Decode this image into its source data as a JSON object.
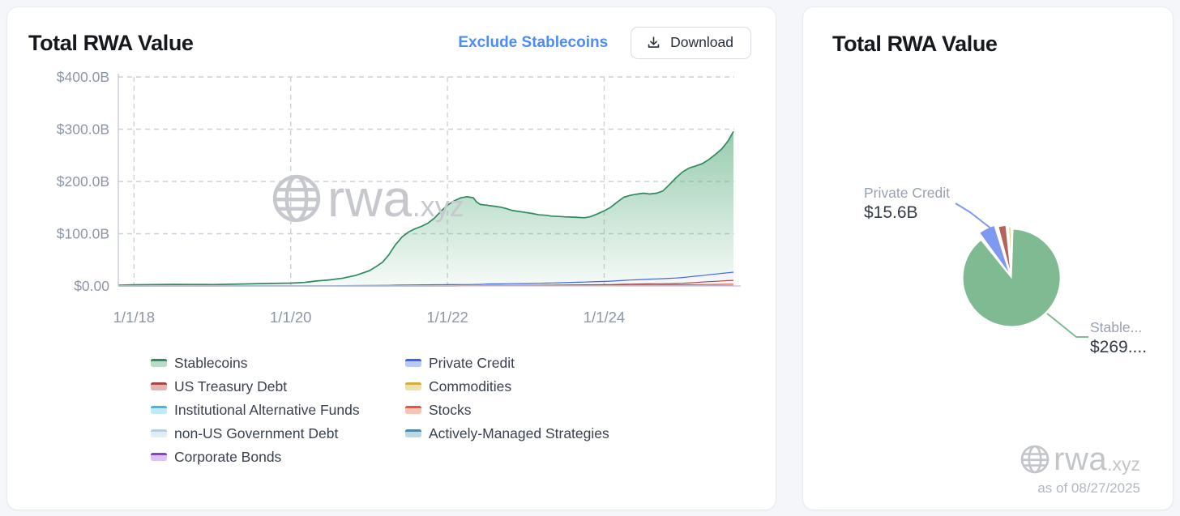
{
  "watermark": {
    "brand": "rwa",
    "tld": ".xyz"
  },
  "left_card": {
    "title": "Total RWA Value",
    "exclude_link": "Exclude Stablecoins",
    "download_label": "Download"
  },
  "right_card": {
    "title": "Total RWA Value",
    "as_of": "as of 08/27/2025",
    "callouts": {
      "private_credit": {
        "name": "Private Credit",
        "value": "$15.6B"
      },
      "stablecoins": {
        "name": "Stable...",
        "value": "$269...."
      }
    }
  },
  "legend": {
    "columns": [
      [
        {
          "label": "Stablecoins",
          "line": "#2f8a5d",
          "fill": "#b9dcc8"
        },
        {
          "label": "US Treasury Debt",
          "line": "#ab4742",
          "fill": "#e3b6b3"
        },
        {
          "label": "Institutional Alternative Funds",
          "line": "#3fbcdc",
          "fill": "#bfeaf6"
        },
        {
          "label": "non-US Government Debt",
          "line": "#b9cde0",
          "fill": "#e2ecf5"
        },
        {
          "label": "Corporate Bonds",
          "line": "#8a3fd0",
          "fill": "#ddc2f3"
        }
      ],
      [
        {
          "label": "Private Credit",
          "line": "#3d63ea",
          "fill": "#bcc9f8"
        },
        {
          "label": "Commodities",
          "line": "#d4af3f",
          "fill": "#efe0ac"
        },
        {
          "label": "Stocks",
          "line": "#e2593a",
          "fill": "#f6c3b5"
        },
        {
          "label": "Actively-Managed Strategies",
          "line": "#4f87a8",
          "fill": "#bcd7e6"
        }
      ]
    ]
  },
  "chart_data": [
    {
      "type": "area",
      "stacked": true,
      "title": "Total RWA Value",
      "xlabel": "",
      "ylabel": "",
      "x_unit": "decimal_year",
      "xlim": [
        2017.8,
        2025.66
      ],
      "ylim": [
        0,
        400
      ],
      "grid": "dashed",
      "legend_position": "bottom",
      "y_ticks": [
        {
          "v": 0,
          "label": "$0.00"
        },
        {
          "v": 100,
          "label": "$100.0B"
        },
        {
          "v": 200,
          "label": "$200.0B"
        },
        {
          "v": 300,
          "label": "$300.0B"
        },
        {
          "v": 400,
          "label": "$400.0B"
        }
      ],
      "x_ticks": [
        {
          "v": 2018,
          "label": "1/1/18"
        },
        {
          "v": 2020,
          "label": "1/1/20"
        },
        {
          "v": 2022,
          "label": "1/1/22"
        },
        {
          "v": 2024,
          "label": "1/1/24"
        }
      ],
      "x": [
        2017.8,
        2018,
        2018.25,
        2018.5,
        2018.75,
        2019,
        2019.25,
        2019.5,
        2019.75,
        2020,
        2020.17,
        2020.33,
        2020.5,
        2020.67,
        2020.83,
        2021,
        2021.08,
        2021.17,
        2021.25,
        2021.33,
        2021.42,
        2021.5,
        2021.58,
        2021.67,
        2021.75,
        2021.83,
        2021.92,
        2022,
        2022.08,
        2022.17,
        2022.25,
        2022.33,
        2022.37,
        2022.42,
        2022.5,
        2022.58,
        2022.67,
        2022.75,
        2022.83,
        2022.92,
        2023,
        2023.08,
        2023.17,
        2023.25,
        2023.33,
        2023.42,
        2023.5,
        2023.58,
        2023.67,
        2023.75,
        2023.83,
        2023.92,
        2024,
        2024.08,
        2024.17,
        2024.25,
        2024.33,
        2024.42,
        2024.5,
        2024.58,
        2024.67,
        2024.75,
        2024.83,
        2024.92,
        2025,
        2025.08,
        2025.17,
        2025.25,
        2025.33,
        2025.42,
        2025.5,
        2025.58,
        2025.65
      ],
      "series": [
        {
          "name": "Institutional Alternative Funds",
          "line": "#3fbcdc",
          "fill": "#7fd6ec",
          "values": 0
        },
        {
          "name": "non-US Government Debt",
          "line": "#b9cde0",
          "fill": "#d3e2ef",
          "values": 0
        },
        {
          "name": "Commodities",
          "line": "#d4af3f",
          "fill": "#e5cd7f",
          "values": 0
        },
        {
          "name": "Actively-Managed Strategies",
          "line": "#4f87a8",
          "fill": "#8fb8cd",
          "values": 0
        },
        {
          "name": "Corporate Bonds",
          "line": "#8a3fd0",
          "fill": "#bb87e6",
          "values": [
            0,
            0,
            0,
            0,
            0,
            0,
            0,
            0,
            0,
            0,
            0,
            0,
            0,
            0,
            0,
            0,
            0,
            0,
            0,
            0,
            0,
            0,
            0,
            0,
            0,
            0,
            0,
            0.05,
            0.05,
            0.1,
            0.1,
            0.1,
            0.1,
            0.1,
            0.15,
            0.15,
            0.15,
            0.2,
            0.2,
            0.2,
            0.2,
            0.2,
            0.25,
            0.25,
            0.25,
            0.25,
            0.3,
            0.3,
            0.3,
            0.3,
            0.3,
            0.3,
            0.3,
            0.3,
            0.35,
            0.35,
            0.35,
            0.35,
            0.4,
            0.4,
            0.4,
            0.4,
            0.45,
            0.45,
            0.45,
            0.5,
            0.5,
            0.5,
            0.55,
            0.55,
            0.6,
            0.6,
            0.6
          ]
        },
        {
          "name": "Stocks",
          "line": "#e2593a",
          "fill": "#ee9a83",
          "values": [
            0,
            0,
            0,
            0,
            0,
            0,
            0,
            0,
            0,
            0,
            0,
            0,
            0,
            0,
            0,
            0,
            0,
            0,
            0,
            0,
            0,
            0,
            0,
            0,
            0,
            0,
            0,
            0,
            0,
            0,
            0,
            0,
            0,
            0,
            0.6,
            0.7,
            0.7,
            0.75,
            0.8,
            0.85,
            0.9,
            0.95,
            1,
            1,
            1.05,
            1.1,
            1.1,
            1.15,
            1.2,
            1.2,
            1.25,
            1.3,
            1.3,
            1.35,
            1.4,
            1.45,
            1.5,
            1.5,
            1.55,
            1.6,
            1.65,
            1.7,
            1.75,
            1.8,
            1.9,
            2,
            2.1,
            2.2,
            2.3,
            2.4,
            2.5,
            2.6,
            2.7
          ]
        },
        {
          "name": "US Treasury Debt",
          "line": "#ab4742",
          "fill": "#cd8783",
          "values": [
            0,
            0,
            0,
            0,
            0,
            0,
            0,
            0,
            0,
            0,
            0,
            0,
            0,
            0,
            0,
            0,
            0,
            0,
            0,
            0,
            0,
            0,
            0,
            0,
            0,
            0,
            0,
            0,
            0,
            0,
            0,
            0,
            0.1,
            0.1,
            0.1,
            0.1,
            0.1,
            0.1,
            0.1,
            0.1,
            0.1,
            0.15,
            0.2,
            0.25,
            0.3,
            0.35,
            0.4,
            0.5,
            0.55,
            0.6,
            0.65,
            0.7,
            0.85,
            0.95,
            1.2,
            1.5,
            1.7,
            1.8,
            1.9,
            2,
            2.1,
            2.2,
            2.3,
            2.5,
            2.8,
            3.4,
            4.1,
            4.7,
            5.3,
            5.9,
            6.5,
            7,
            7.4
          ]
        },
        {
          "name": "Private Credit",
          "line": "#3d63ea",
          "fill": "#7e9af3",
          "values": [
            0,
            0,
            0,
            0,
            0,
            0,
            0.1,
            0.1,
            0.2,
            0.3,
            0.3,
            0.4,
            0.5,
            0.6,
            0.8,
            1,
            1.1,
            1.2,
            1.3,
            1.5,
            1.7,
            1.9,
            2,
            2.1,
            2.2,
            2.3,
            2.4,
            2.5,
            2.5,
            2.6,
            2.6,
            2.7,
            2.7,
            2.7,
            2.8,
            2.9,
            3,
            3.1,
            3.2,
            3.3,
            3.4,
            3.5,
            3.7,
            3.9,
            4.1,
            4.3,
            4.5,
            4.8,
            5.1,
            5.4,
            5.7,
            6,
            6.3,
            6.6,
            7,
            7.4,
            7.8,
            8.2,
            8.6,
            9,
            9.3,
            9.6,
            10,
            10.5,
            11,
            11.5,
            12,
            12.5,
            13.2,
            13.9,
            14.5,
            15.1,
            15.6
          ]
        },
        {
          "name": "Stablecoins",
          "line": "#2f8a5d",
          "fill": "#5faf82",
          "values": [
            1.4,
            2.2,
            2.7,
            2.9,
            2.8,
            2.7,
            3.2,
            4,
            4.6,
            5.2,
            6.3,
            9,
            11.2,
            14.5,
            19.5,
            28,
            35,
            44,
            58,
            76,
            92,
            101,
            107,
            112,
            118,
            127,
            141,
            152,
            160,
            166,
            168,
            166,
            158,
            153,
            151,
            149,
            147,
            144,
            140,
            138,
            136,
            134,
            131,
            130,
            128,
            127,
            126,
            125,
            124,
            123,
            125,
            130,
            135,
            141,
            151,
            159,
            162,
            164,
            165,
            163,
            164,
            168,
            179,
            192,
            202,
            208,
            211,
            214,
            220,
            229,
            238,
            252,
            269.4
          ]
        }
      ]
    },
    {
      "type": "pie",
      "title": "Total RWA Value",
      "as_of_date": "08/27/2025",
      "slices": [
        {
          "label": "Stablecoins",
          "value_b": 269.4,
          "color": "#7fba93",
          "callout_name": "Stable...",
          "callout_value": "$269...."
        },
        {
          "label": "Private Credit",
          "value_b": 15.6,
          "color": "#7d9af0",
          "callout_name": "Private Credit",
          "callout_value": "$15.6B"
        },
        {
          "label": "US Treasury Debt",
          "value_b": 7.4,
          "color": "#b5625c"
        },
        {
          "label": "Commodities",
          "value_b": 1.8,
          "color": "#d9c05e"
        }
      ]
    }
  ]
}
